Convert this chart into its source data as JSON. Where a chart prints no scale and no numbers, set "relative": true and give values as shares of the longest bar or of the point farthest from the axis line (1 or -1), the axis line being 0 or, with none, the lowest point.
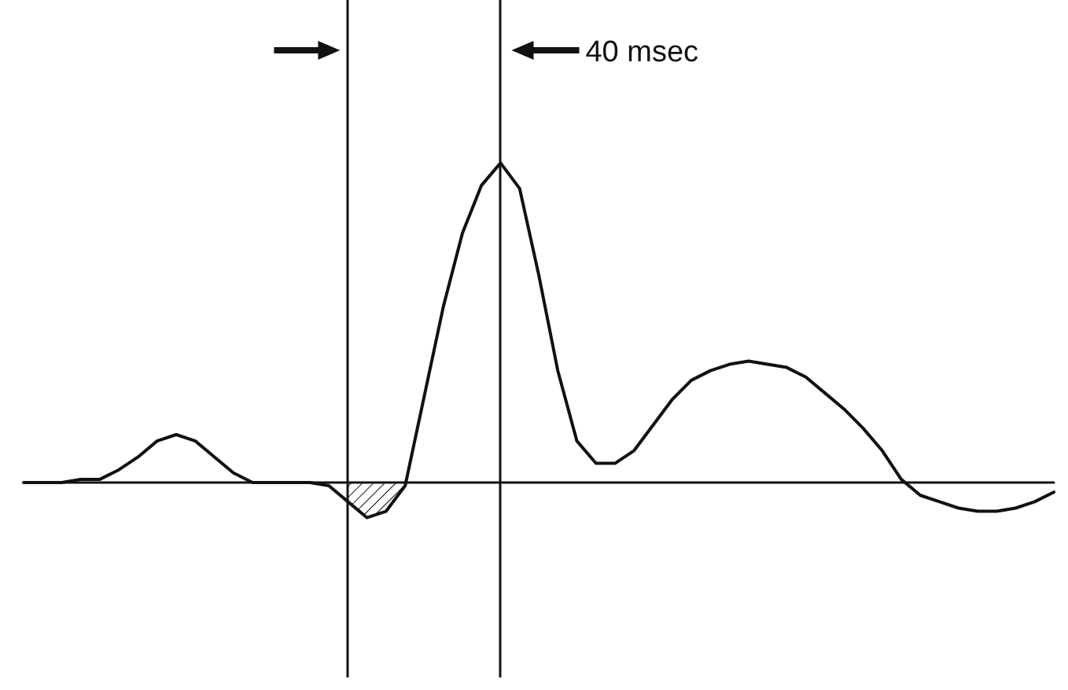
{
  "chart_data": {
    "type": "line",
    "relative": true,
    "marker": "none",
    "line_style": "solid",
    "categories": [
      null,
      null,
      null,
      null,
      null,
      null,
      null,
      null,
      null,
      null,
      null,
      null,
      null,
      null,
      null,
      null,
      null,
      null,
      null,
      null,
      null,
      null,
      null,
      null,
      null,
      null,
      null,
      null,
      null,
      null,
      null,
      null,
      null,
      null,
      null,
      null,
      null,
      null,
      null,
      null,
      null,
      null,
      null,
      null,
      null,
      null,
      null,
      null,
      null,
      null,
      null,
      null,
      null,
      null,
      null
    ],
    "series": [
      {
        "color": "#111111",
        "values": [
          0,
          0,
          0,
          0.01,
          0.01,
          0.04,
          0.08,
          0.13,
          0.15,
          0.13,
          0.08,
          0.03,
          0,
          0,
          0,
          0,
          -0.01,
          -0.06,
          -0.11,
          -0.09,
          -0.01,
          0.27,
          0.55,
          0.78,
          0.93,
          1,
          0.92,
          0.65,
          0.35,
          0.13,
          0.06,
          0.06,
          0.1,
          0.18,
          0.26,
          0.32,
          0.35,
          0.37,
          0.38,
          0.37,
          0.36,
          0.33,
          0.28,
          0.23,
          0.17,
          0.1,
          0.01,
          -0.04,
          -0.06,
          -0.08,
          -0.09,
          -0.09,
          -0.08,
          -0.06,
          -0.03
        ]
      }
    ],
    "annotations": [
      "40 msec"
    ]
  }
}
